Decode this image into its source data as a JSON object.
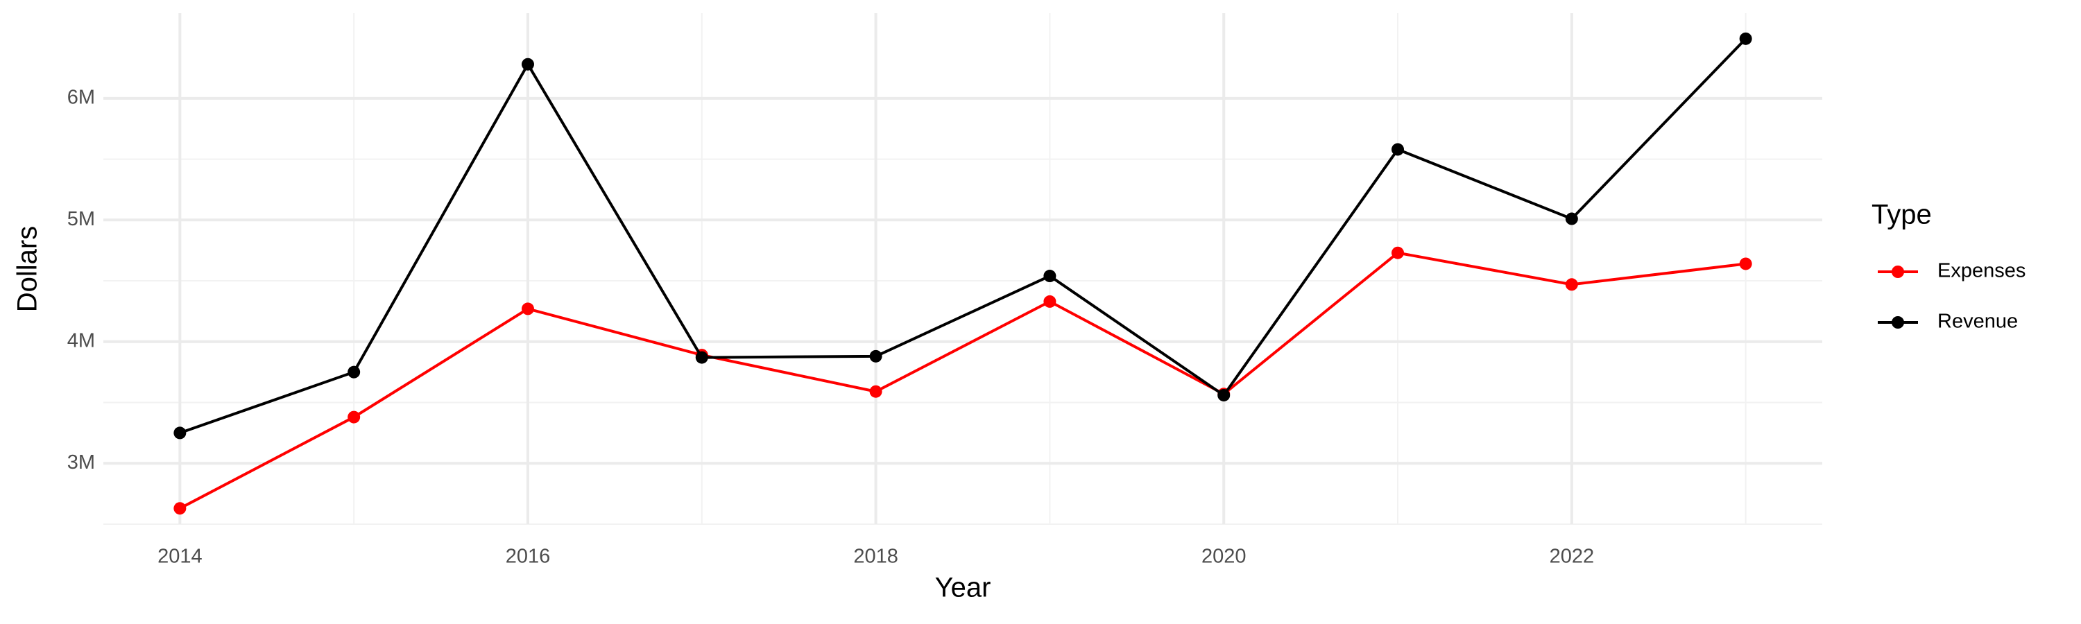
{
  "chart_data": {
    "type": "line",
    "x_label": "Year",
    "y_label": "Dollars",
    "legend_title": "Type",
    "legend": "right",
    "grid": true,
    "x": [
      2014,
      2015,
      2016,
      2017,
      2018,
      2019,
      2020,
      2021,
      2022,
      2023
    ],
    "series": [
      {
        "name": "Expenses",
        "color": "#ff0000",
        "values": [
          2630000,
          3380000,
          4270000,
          3890000,
          3590000,
          4330000,
          3570000,
          4730000,
          4470000,
          4640000
        ]
      },
      {
        "name": "Revenue",
        "color": "#000000",
        "values": [
          3250000,
          3750000,
          6280000,
          3870000,
          3880000,
          4540000,
          3560000,
          5580000,
          5010000,
          6490000
        ]
      }
    ],
    "xlim": [
      2013.56,
      2023.44
    ],
    "xticks": [
      2014,
      2016,
      2018,
      2020,
      2022
    ],
    "ylim": [
      2500000,
      6700000
    ],
    "yticks": [
      {
        "value": 3000000,
        "label": "3M"
      },
      {
        "value": 4000000,
        "label": "4M"
      },
      {
        "value": 5000000,
        "label": "5M"
      },
      {
        "value": 6000000,
        "label": "6M"
      }
    ]
  }
}
